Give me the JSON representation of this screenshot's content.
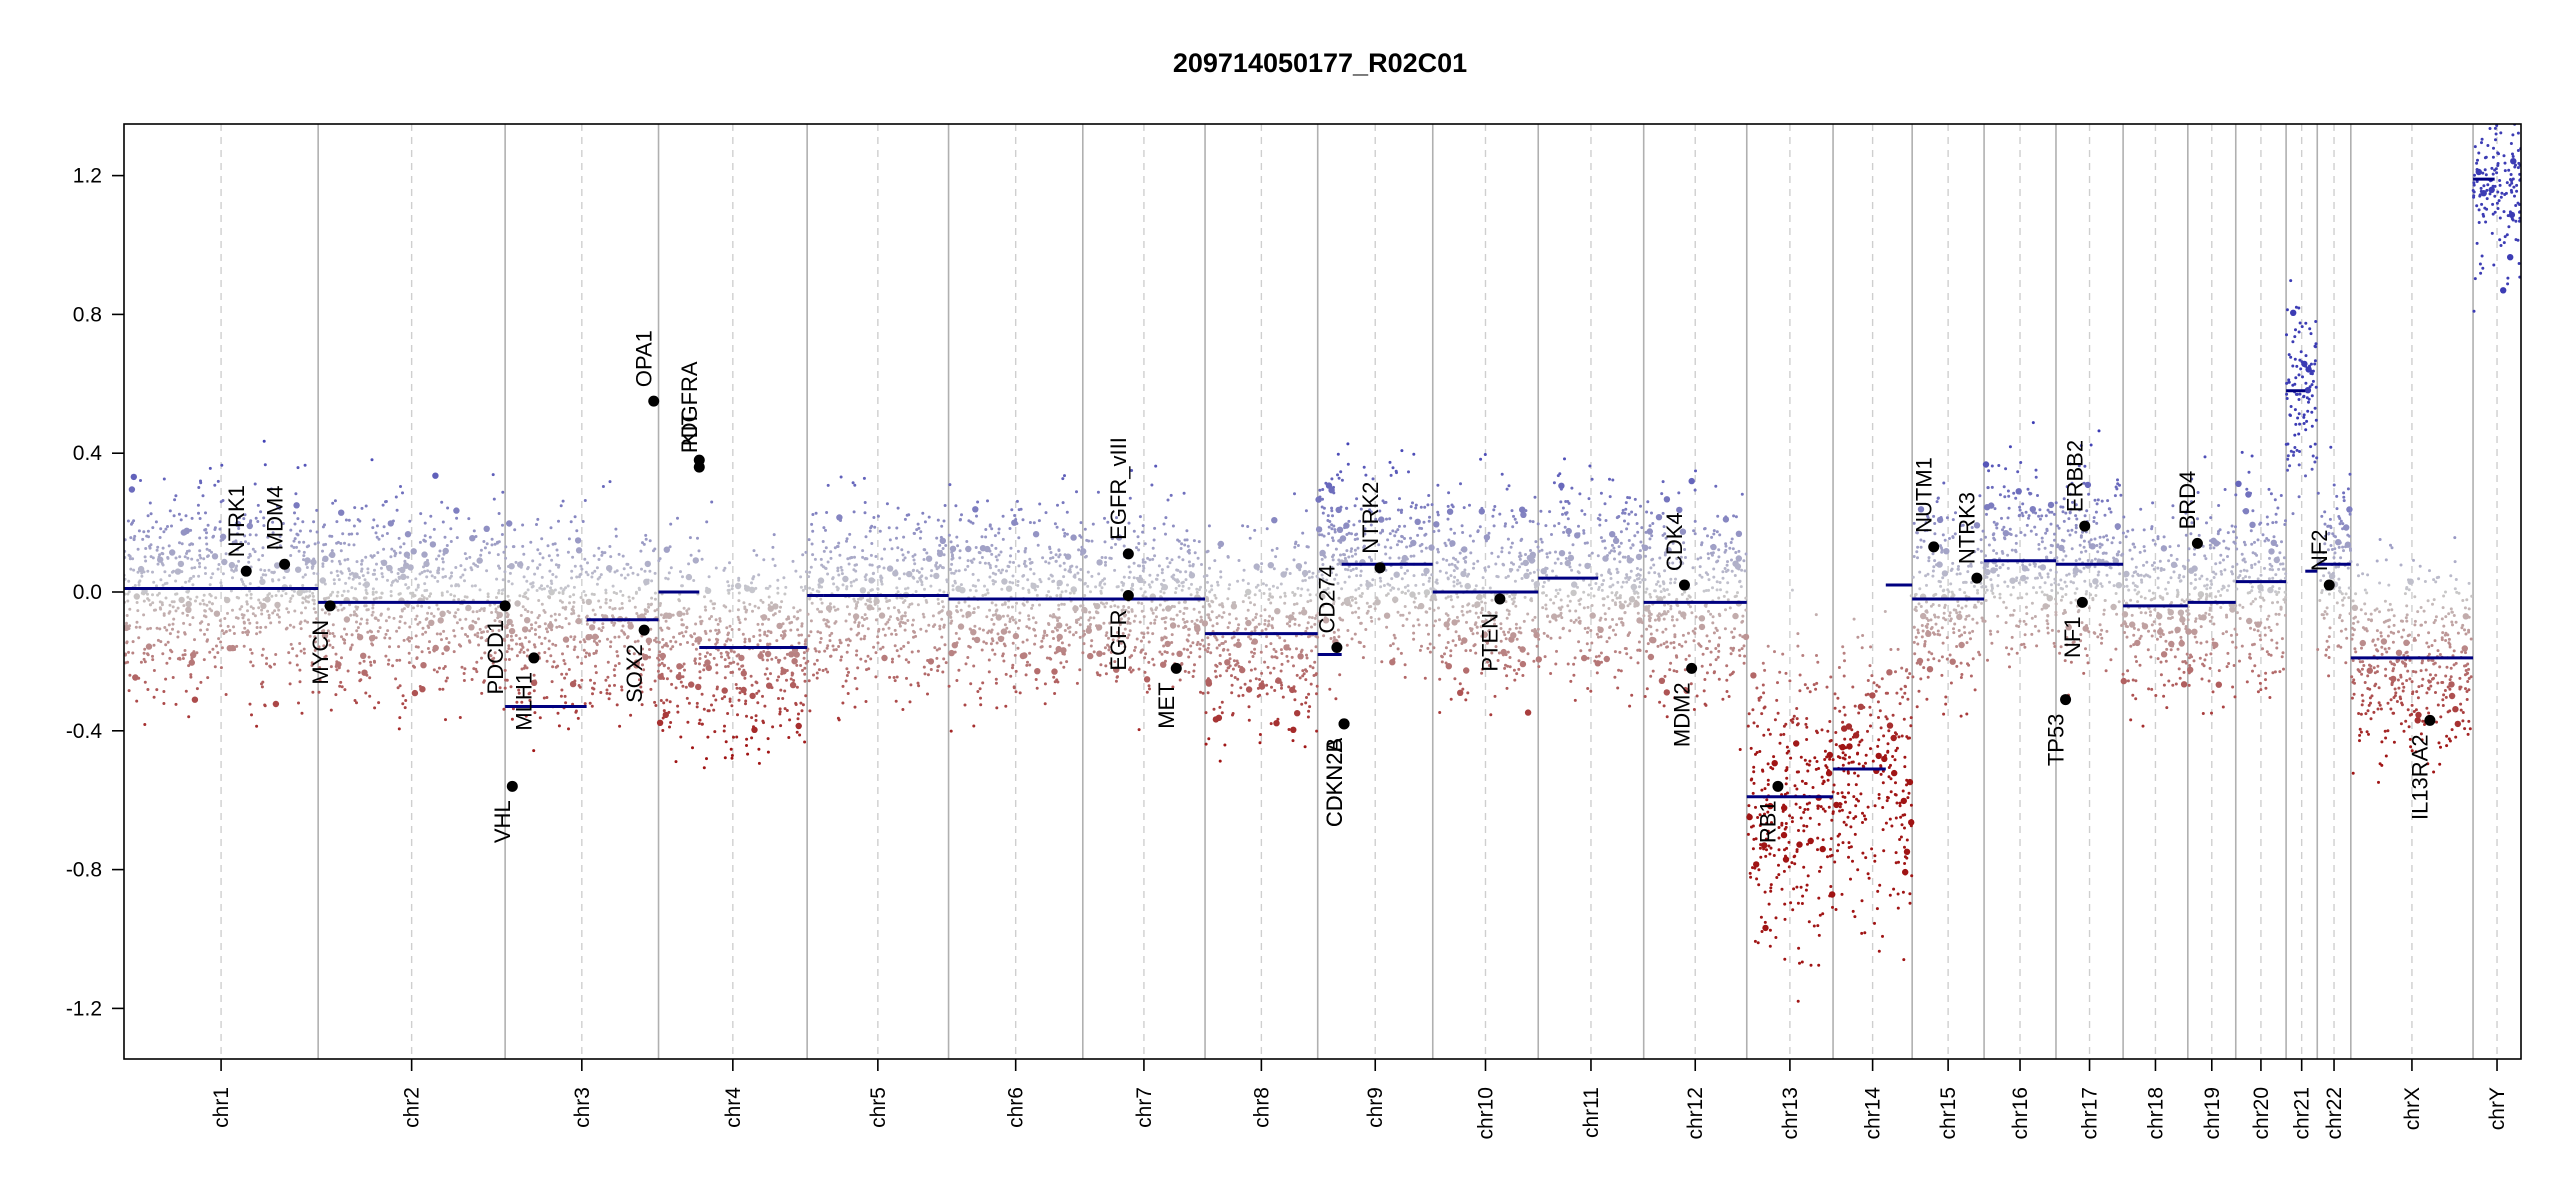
{
  "chart_data": {
    "type": "scatter",
    "title": "209714050177_R02C01",
    "xlabel": "",
    "ylabel": "",
    "ylim": [
      -1.35,
      1.35
    ],
    "yticks": [
      1.2,
      0.8,
      0.4,
      0.0,
      -0.4,
      -0.8,
      -1.2
    ],
    "ytick_labels": [
      "1.2",
      "0.8",
      "0.4",
      "0.0",
      "-0.4",
      "-0.8",
      "-1.2"
    ],
    "grid": false,
    "chromosomes": [
      {
        "name": "chr1",
        "start": 0.0,
        "end": 8.1,
        "mean": 0.01
      },
      {
        "name": "chr2",
        "start": 8.1,
        "end": 15.9,
        "mean": -0.03
      },
      {
        "name": "chr3",
        "start": 15.9,
        "end": 22.3,
        "mean": -0.08
      },
      {
        "name": "chr4",
        "start": 22.3,
        "end": 28.5,
        "mean": -0.16
      },
      {
        "name": "chr5",
        "start": 28.5,
        "end": 34.4,
        "mean": -0.01
      },
      {
        "name": "chr6",
        "start": 34.4,
        "end": 40.0,
        "mean": -0.02
      },
      {
        "name": "chr7",
        "start": 40.0,
        "end": 45.1,
        "mean": -0.02
      },
      {
        "name": "chr8",
        "start": 45.1,
        "end": 49.8,
        "mean": -0.12
      },
      {
        "name": "chr9",
        "start": 49.8,
        "end": 54.6,
        "mean": 0.08
      },
      {
        "name": "chr10",
        "start": 54.6,
        "end": 59.0,
        "mean": 0.0
      },
      {
        "name": "chr11",
        "start": 59.0,
        "end": 63.4,
        "mean": 0.04
      },
      {
        "name": "chr12",
        "start": 63.4,
        "end": 67.7,
        "mean": -0.03
      },
      {
        "name": "chr13",
        "start": 67.7,
        "end": 71.3,
        "mean": -0.59
      },
      {
        "name": "chr14",
        "start": 71.3,
        "end": 74.6,
        "mean": -0.51
      },
      {
        "name": "chr15",
        "start": 74.6,
        "end": 77.6,
        "mean": -0.02
      },
      {
        "name": "chr16",
        "start": 77.6,
        "end": 80.6,
        "mean": 0.09
      },
      {
        "name": "chr17",
        "start": 80.6,
        "end": 83.4,
        "mean": 0.08
      },
      {
        "name": "chr18",
        "start": 83.4,
        "end": 86.1,
        "mean": -0.04
      },
      {
        "name": "chr19",
        "start": 86.1,
        "end": 88.1,
        "mean": -0.03
      },
      {
        "name": "chr20",
        "start": 88.1,
        "end": 90.2,
        "mean": 0.03
      },
      {
        "name": "chr21",
        "start": 90.2,
        "end": 91.5,
        "mean": 0.58
      },
      {
        "name": "chr22",
        "start": 91.5,
        "end": 92.9,
        "mean": 0.08
      },
      {
        "name": "chrX",
        "start": 92.9,
        "end": 98.0,
        "mean": -0.19
      },
      {
        "name": "chrY",
        "start": 98.0,
        "end": 100.0,
        "mean": 1.19
      }
    ],
    "segments": [
      {
        "start": 0.0,
        "end": 8.1,
        "value": 0.01
      },
      {
        "start": 8.1,
        "end": 15.9,
        "value": -0.03
      },
      {
        "start": 15.9,
        "end": 19.3,
        "value": -0.33
      },
      {
        "start": 19.3,
        "end": 22.3,
        "value": -0.08
      },
      {
        "start": 22.3,
        "end": 24.0,
        "value": 0.0
      },
      {
        "start": 24.0,
        "end": 28.5,
        "value": -0.16
      },
      {
        "start": 28.5,
        "end": 29.2,
        "value": -0.01
      },
      {
        "start": 29.2,
        "end": 34.4,
        "value": -0.01
      },
      {
        "start": 34.4,
        "end": 40.0,
        "value": -0.02
      },
      {
        "start": 40.0,
        "end": 45.1,
        "value": -0.02
      },
      {
        "start": 45.1,
        "end": 49.8,
        "value": -0.12
      },
      {
        "start": 49.8,
        "end": 50.8,
        "value": -0.18
      },
      {
        "start": 50.8,
        "end": 54.6,
        "value": 0.08
      },
      {
        "start": 54.6,
        "end": 59.0,
        "value": 0.0
      },
      {
        "start": 59.0,
        "end": 61.5,
        "value": 0.04
      },
      {
        "start": 63.4,
        "end": 67.7,
        "value": -0.03
      },
      {
        "start": 67.7,
        "end": 71.3,
        "value": -0.59
      },
      {
        "start": 71.3,
        "end": 73.5,
        "value": -0.51
      },
      {
        "start": 73.5,
        "end": 74.6,
        "value": 0.02
      },
      {
        "start": 74.6,
        "end": 77.6,
        "value": -0.02
      },
      {
        "start": 77.6,
        "end": 80.6,
        "value": 0.09
      },
      {
        "start": 80.6,
        "end": 83.4,
        "value": 0.08
      },
      {
        "start": 83.4,
        "end": 86.1,
        "value": -0.04
      },
      {
        "start": 86.1,
        "end": 88.1,
        "value": -0.03
      },
      {
        "start": 88.1,
        "end": 90.2,
        "value": 0.03
      },
      {
        "start": 90.2,
        "end": 91.0,
        "value": 0.58
      },
      {
        "start": 91.0,
        "end": 91.5,
        "value": 0.06
      },
      {
        "start": 91.5,
        "end": 92.9,
        "value": 0.08
      },
      {
        "start": 92.9,
        "end": 98.0,
        "value": -0.19
      },
      {
        "start": 98.0,
        "end": 98.9,
        "value": 1.19
      }
    ],
    "genes": [
      {
        "name": "NTRK1",
        "x": 5.1,
        "value": 0.06,
        "label_side": "above"
      },
      {
        "name": "MDM4",
        "x": 6.7,
        "value": 0.08,
        "label_side": "above"
      },
      {
        "name": "MYCN",
        "x": 8.6,
        "value": -0.04,
        "label_side": "below"
      },
      {
        "name": "PDCD1",
        "x": 15.9,
        "value": -0.04,
        "label_side": "below"
      },
      {
        "name": "VHL",
        "x": 16.2,
        "value": -0.56,
        "label_side": "below"
      },
      {
        "name": "MLH1",
        "x": 17.1,
        "value": -0.19,
        "label_side": "below"
      },
      {
        "name": "SOX2",
        "x": 21.7,
        "value": -0.11,
        "label_side": "below"
      },
      {
        "name": "OPA1",
        "x": 22.1,
        "value": 0.55,
        "label_side": "above"
      },
      {
        "name": "KIT",
        "x": 24.0,
        "value": 0.38,
        "label_side": "above"
      },
      {
        "name": "PDGFRA",
        "x": 24.0,
        "value": 0.36,
        "label_side": "above"
      },
      {
        "name": "EGFR_vIII",
        "x": 41.9,
        "value": 0.11,
        "label_side": "above"
      },
      {
        "name": "EGFR",
        "x": 41.9,
        "value": -0.01,
        "label_side": "below"
      },
      {
        "name": "MET",
        "x": 43.9,
        "value": -0.22,
        "label_side": "below"
      },
      {
        "name": "CD274",
        "x": 50.6,
        "value": -0.16,
        "label_side": "above"
      },
      {
        "name": "CDKN2A",
        "x": 50.9,
        "value": -0.38,
        "label_side": "below"
      },
      {
        "name": "CDKN2B",
        "x": 50.9,
        "value": -0.38,
        "label_side": "below"
      },
      {
        "name": "NTRK2",
        "x": 52.4,
        "value": 0.07,
        "label_side": "above"
      },
      {
        "name": "PTEN",
        "x": 57.4,
        "value": -0.02,
        "label_side": "below"
      },
      {
        "name": "CDK4",
        "x": 65.1,
        "value": 0.02,
        "label_side": "above"
      },
      {
        "name": "MDM2",
        "x": 65.4,
        "value": -0.22,
        "label_side": "below"
      },
      {
        "name": "RB1",
        "x": 69.0,
        "value": -0.56,
        "label_side": "below"
      },
      {
        "name": "NUTM1",
        "x": 75.5,
        "value": 0.13,
        "label_side": "above"
      },
      {
        "name": "NTRK3",
        "x": 77.3,
        "value": 0.04,
        "label_side": "above"
      },
      {
        "name": "TP53",
        "x": 81.0,
        "value": -0.31,
        "label_side": "below"
      },
      {
        "name": "ERBB2",
        "x": 81.8,
        "value": 0.19,
        "label_side": "above"
      },
      {
        "name": "NF1",
        "x": 81.7,
        "value": -0.03,
        "label_side": "below"
      },
      {
        "name": "BRD4",
        "x": 86.5,
        "value": 0.14,
        "label_side": "above"
      },
      {
        "name": "NF2",
        "x": 92.0,
        "value": 0.02,
        "label_side": "above"
      },
      {
        "name": "IL13RA2",
        "x": 96.2,
        "value": -0.37,
        "label_side": "below"
      }
    ],
    "colors": {
      "gain": "#2020a0",
      "loss": "#a01010",
      "neutral": "#bdbdbd",
      "segment": "#000080",
      "gene": "#000000"
    }
  }
}
